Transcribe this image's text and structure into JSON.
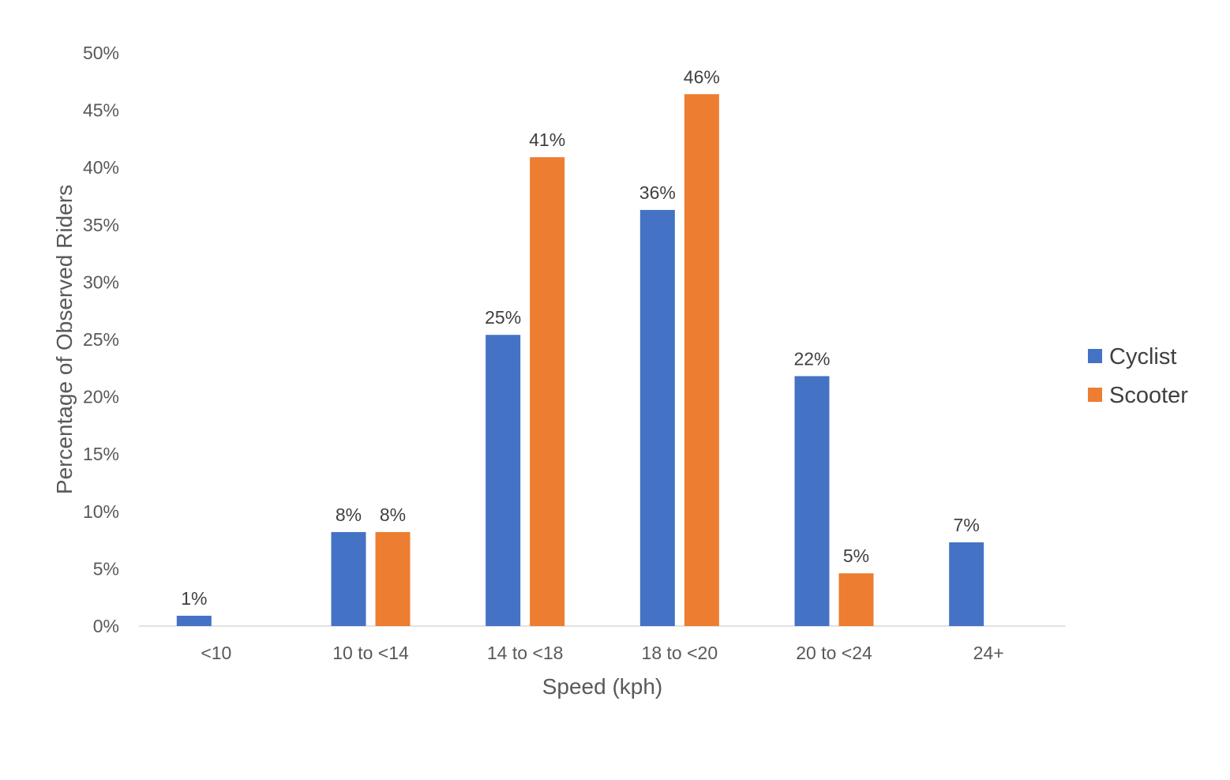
{
  "chart_data": {
    "type": "bar",
    "title": "",
    "xlabel": "Speed (kph)",
    "ylabel": "Percentage of Observed Riders",
    "categories": [
      "<10",
      "10 to <14",
      "14 to <18",
      "18 to <20",
      "20 to <24",
      "24+"
    ],
    "series": [
      {
        "name": "Cyclist",
        "color": "#4472C4",
        "values": [
          0.9,
          8.2,
          25.4,
          36.3,
          21.8,
          7.3
        ],
        "labels": [
          "1%",
          "8%",
          "25%",
          "36%",
          "22%",
          "7%"
        ]
      },
      {
        "name": "Scooter",
        "color": "#ED7D31",
        "values": [
          0,
          8.2,
          40.9,
          46.4,
          4.6,
          0
        ],
        "labels": [
          "",
          "8%",
          "41%",
          "46%",
          "5%",
          ""
        ]
      }
    ],
    "ylim": [
      0,
      50
    ],
    "yticks": [
      "0%",
      "5%",
      "10%",
      "15%",
      "20%",
      "25%",
      "30%",
      "35%",
      "40%",
      "45%",
      "50%"
    ],
    "ytick_values": [
      0,
      5,
      10,
      15,
      20,
      25,
      30,
      35,
      40,
      45,
      50
    ],
    "grid": false,
    "legend_position": "right"
  }
}
